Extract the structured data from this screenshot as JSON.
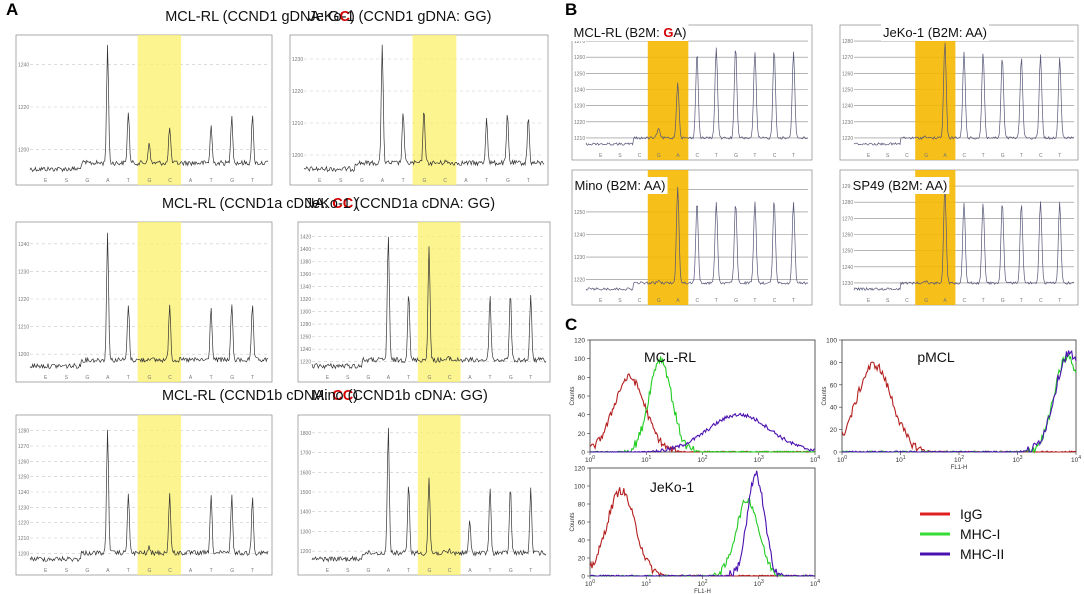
{
  "panel_labels": {
    "a": "A",
    "b": "B",
    "c": "C"
  },
  "chart_data": [
    {
      "type": "pyrogram",
      "panel": "A",
      "title_prefix": "MCL-RL (CCND1 gDNA: G",
      "title_red": "C",
      "title_suffix": ")",
      "sequence": [
        "E",
        "S",
        "G",
        "A",
        "T",
        "G",
        "C",
        "A",
        "T",
        "G",
        "T"
      ],
      "peaks": [
        0,
        0,
        0,
        1.0,
        0.45,
        0.18,
        0.32,
        0,
        0.32,
        0.42,
        0.4
      ],
      "baseline": 0.0,
      "baseline_step_at": 2,
      "highlight": [
        5,
        6
      ],
      "ylabels": [
        "1240",
        "1220",
        "1200"
      ]
    },
    {
      "type": "pyrogram",
      "panel": "A",
      "title_prefix": "JeKo-1 (CCND1 gDNA: GG)",
      "title_red": "",
      "title_suffix": "",
      "sequence": [
        "E",
        "S",
        "G",
        "A",
        "T",
        "G",
        "C",
        "A",
        "T",
        "G",
        "T"
      ],
      "peaks": [
        0,
        0,
        0,
        1.0,
        0.45,
        0.48,
        0.02,
        0,
        0.4,
        0.42,
        0.4
      ],
      "baseline": 0.0,
      "baseline_step_at": 2,
      "highlight": [
        5,
        6
      ],
      "ylabels": [
        "1230",
        "1220",
        "1210",
        "1200"
      ]
    },
    {
      "type": "pyrogram",
      "panel": "A",
      "title_prefix": "MCL-RL (CCND1a cDNA: ",
      "title_red": "CC",
      "title_suffix": ")",
      "sequence": [
        "E",
        "S",
        "G",
        "A",
        "T",
        "G",
        "C",
        "A",
        "T",
        "G",
        "T"
      ],
      "peaks": [
        0,
        0,
        0,
        1.0,
        0.45,
        0.02,
        0.45,
        0,
        0.42,
        0.45,
        0.44
      ],
      "baseline": 0.0,
      "baseline_step_at": 2,
      "highlight": [
        5,
        6
      ],
      "ylabels": [
        "1240",
        "1230",
        "1220",
        "1210",
        "1200"
      ]
    },
    {
      "type": "pyrogram",
      "panel": "A",
      "title_prefix": "JeKo-1 (CCND1a cDNA: GG)",
      "title_red": "",
      "title_suffix": "",
      "sequence": [
        "E",
        "S",
        "G",
        "A",
        "T",
        "G",
        "C",
        "A",
        "T",
        "G",
        "T"
      ],
      "peaks": [
        0,
        0,
        0,
        1.0,
        0.55,
        0.9,
        0.02,
        0,
        0.5,
        0.52,
        0.5
      ],
      "baseline": 0.0,
      "baseline_step_at": 2,
      "highlight": [
        5,
        6
      ],
      "ylabels": [
        "1420",
        "1400",
        "1380",
        "1360",
        "1340",
        "1320",
        "1300",
        "1280",
        "1260",
        "1240",
        "1220"
      ]
    },
    {
      "type": "pyrogram",
      "panel": "A",
      "title_prefix": "MCL-RL (CCND1b cDNA: ",
      "title_red": "CC",
      "title_suffix": ")",
      "sequence": [
        "E",
        "S",
        "G",
        "A",
        "T",
        "G",
        "C",
        "A",
        "T",
        "G",
        "T"
      ],
      "peaks": [
        0,
        0,
        0,
        1.0,
        0.48,
        0.04,
        0.48,
        0,
        0.45,
        0.45,
        0.44
      ],
      "baseline": 0.0,
      "baseline_step_at": 2,
      "highlight": [
        5,
        6
      ],
      "ylabels": [
        "1280",
        "1270",
        "1260",
        "1250",
        "1240",
        "1230",
        "1220",
        "1210",
        "1200"
      ]
    },
    {
      "type": "pyrogram",
      "panel": "A",
      "title_prefix": "Mino (CCND1b cDNA: GG)",
      "title_red": "",
      "title_suffix": "",
      "sequence": [
        "E",
        "S",
        "G",
        "A",
        "T",
        "G",
        "C",
        "A",
        "T",
        "G",
        "T"
      ],
      "peaks": [
        0,
        0,
        0,
        1.0,
        0.55,
        0.6,
        0.02,
        0.25,
        0.5,
        0.52,
        0.5
      ],
      "baseline": 0.0,
      "baseline_step_at": 2,
      "highlight": [
        5,
        6
      ],
      "ylabels": [
        "1800",
        "1700",
        "1600",
        "1500",
        "1400",
        "1300",
        "1200"
      ]
    },
    {
      "type": "pyrogram",
      "panel": "B",
      "title_prefix": "MCL-RL (B2M: ",
      "title_red": "G",
      "title_suffix": "A)",
      "sequence": [
        "E",
        "S",
        "C",
        "G",
        "A",
        "C",
        "T",
        "G",
        "T",
        "C",
        "T"
      ],
      "peaks": [
        0,
        0,
        0,
        0.1,
        0.55,
        0.85,
        0.9,
        0.9,
        0.85,
        0.88,
        0.85
      ],
      "baseline": 0.0,
      "baseline_step_at": 2,
      "highlight": [
        3,
        4
      ],
      "ylabels": [
        "1270",
        "1260",
        "1250",
        "1240",
        "1230",
        "1220",
        "1210"
      ]
    },
    {
      "type": "pyrogram",
      "panel": "B",
      "title_prefix": "JeKo-1 (B2M: AA)",
      "title_red": "",
      "title_suffix": "",
      "sequence": [
        "E",
        "S",
        "C",
        "G",
        "A",
        "C",
        "T",
        "G",
        "T",
        "C",
        "T"
      ],
      "peaks": [
        0,
        0,
        0,
        0.02,
        0.95,
        0.85,
        0.85,
        0.8,
        0.8,
        0.82,
        0.8
      ],
      "baseline": 0.0,
      "baseline_step_at": 2,
      "highlight": [
        3,
        4
      ],
      "ylabels": [
        "1280",
        "1270",
        "1260",
        "1250",
        "1240",
        "1230",
        "1220"
      ]
    },
    {
      "type": "pyrogram",
      "panel": "B",
      "title_prefix": "Mino (B2M: AA)",
      "title_red": "",
      "title_suffix": "",
      "sequence": [
        "E",
        "S",
        "C",
        "G",
        "A",
        "C",
        "T",
        "G",
        "T",
        "C",
        "T"
      ],
      "peaks": [
        0,
        0,
        0,
        0.02,
        0.95,
        0.8,
        0.8,
        0.8,
        0.8,
        0.82,
        0.8
      ],
      "baseline": 0.0,
      "baseline_step_at": 2,
      "highlight": [
        3,
        4
      ],
      "ylabels": [
        "1260",
        "1250",
        "1240",
        "1230",
        "1220"
      ]
    },
    {
      "type": "pyrogram",
      "panel": "B",
      "title_prefix": "SP49 (B2M: AA)",
      "title_red": "",
      "title_suffix": "",
      "sequence": [
        "E",
        "S",
        "C",
        "G",
        "A",
        "C",
        "T",
        "G",
        "T",
        "C",
        "T"
      ],
      "peaks": [
        0,
        0,
        0,
        0.02,
        0.95,
        0.8,
        0.8,
        0.8,
        0.8,
        0.82,
        0.8
      ],
      "baseline": 0.0,
      "baseline_step_at": 2,
      "highlight": [
        3,
        4
      ],
      "ylabels": [
        "1290",
        "1280",
        "1270",
        "1260",
        "1250",
        "1240",
        "1230"
      ]
    },
    {
      "type": "histogram",
      "panel": "C",
      "title": "MCL-RL",
      "xscale": "log",
      "xlim": [
        1,
        10000
      ],
      "ylim": [
        0,
        120
      ],
      "yticks": [
        0,
        20,
        40,
        60,
        80,
        100,
        120
      ],
      "xlabel": "",
      "ylabel": "Counts",
      "series": [
        {
          "name": "IgG",
          "color": "#b52020",
          "center_log": 0.7,
          "width_log": 0.28,
          "height": 80
        },
        {
          "name": "MHC-I",
          "color": "#22cc22",
          "center_log": 1.25,
          "width_log": 0.2,
          "height": 100
        },
        {
          "name": "MHC-II",
          "color": "#4b10b0",
          "center_log": 2.65,
          "width_log": 0.55,
          "height": 40
        }
      ]
    },
    {
      "type": "histogram",
      "panel": "C",
      "title": "pMCL",
      "xscale": "log",
      "xlim": [
        1,
        10000
      ],
      "ylim": [
        0,
        100
      ],
      "yticks": [
        0,
        20,
        40,
        60,
        80,
        100
      ],
      "xlabel": "FL1-H",
      "ylabel": "Counts",
      "series": [
        {
          "name": "IgG",
          "color": "#b52020",
          "center_log": 0.55,
          "width_log": 0.3,
          "height": 78
        },
        {
          "name": "MHC-I",
          "color": "#22cc22",
          "center_log": 3.85,
          "width_log": 0.22,
          "height": 85
        },
        {
          "name": "MHC-II",
          "color": "#4b10b0",
          "center_log": 3.88,
          "width_log": 0.24,
          "height": 88
        }
      ]
    },
    {
      "type": "histogram",
      "panel": "C",
      "title": "JeKo-1",
      "xscale": "log",
      "xlim": [
        1,
        10000
      ],
      "ylim": [
        0,
        120
      ],
      "yticks": [
        0,
        20,
        40,
        60,
        80,
        100,
        120
      ],
      "xlabel": "FL1-H",
      "ylabel": "Counts",
      "series": [
        {
          "name": "IgG",
          "color": "#b52020",
          "center_log": 0.55,
          "width_log": 0.25,
          "height": 95
        },
        {
          "name": "MHC-I",
          "color": "#22cc22",
          "center_log": 2.8,
          "width_log": 0.2,
          "height": 85
        },
        {
          "name": "MHC-II",
          "color": "#4b10b0",
          "center_log": 2.95,
          "width_log": 0.15,
          "height": 112
        }
      ]
    }
  ],
  "legend": [
    {
      "label": "IgG",
      "color": "#e02020"
    },
    {
      "label": "MHC-I",
      "color": "#33dd33"
    },
    {
      "label": "MHC-II",
      "color": "#4b10b0"
    }
  ]
}
